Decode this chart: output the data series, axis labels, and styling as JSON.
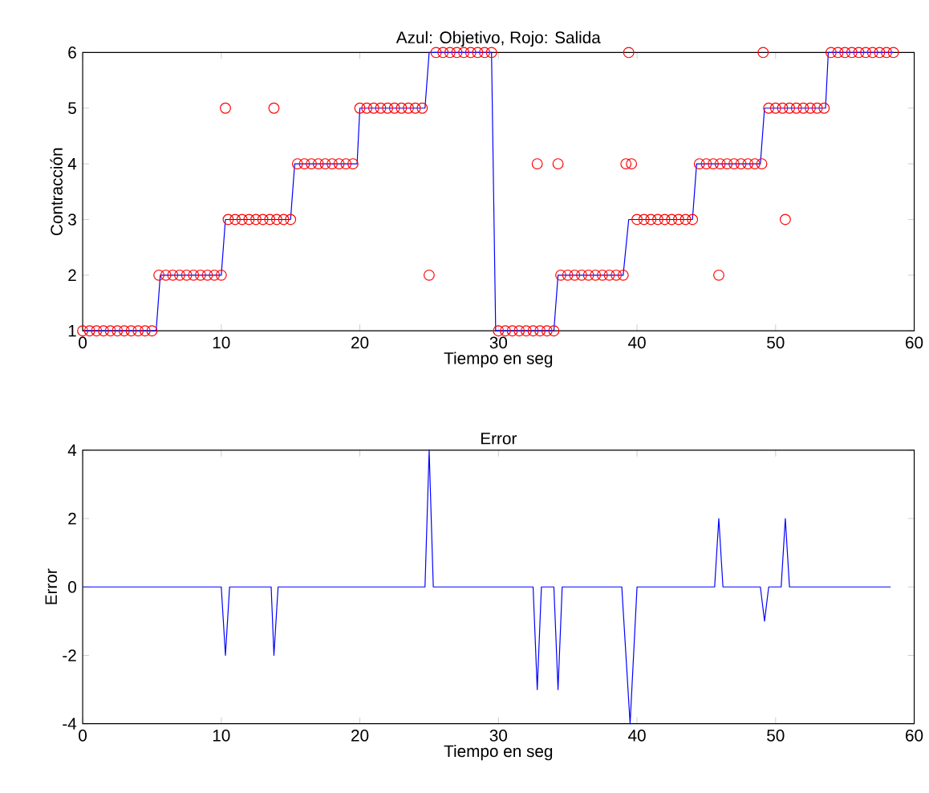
{
  "chart_data": [
    {
      "type": "line",
      "title": "Azul: Objetivo, Rojo: Salida",
      "xlabel": "Tiempo en seg",
      "ylabel": "Contracción",
      "xlim": [
        0,
        60
      ],
      "ylim": [
        1,
        6
      ],
      "xticks": [
        0,
        10,
        20,
        30,
        40,
        50,
        60
      ],
      "yticks": [
        1,
        2,
        3,
        4,
        5,
        6
      ],
      "series": [
        {
          "color": "#0000ff",
          "marker": "none",
          "line_style": "solid",
          "x": [
            0,
            5.3,
            5.6,
            10.0,
            10.3,
            15.0,
            15.3,
            19.8,
            20.0,
            24.7,
            25.0,
            29.5,
            29.8,
            34.0,
            34.3,
            39.0,
            39.4,
            44.0,
            44.3,
            48.9,
            49.2,
            53.6,
            53.8,
            58.5
          ],
          "values": [
            1,
            1,
            2,
            2,
            3,
            3,
            4,
            4,
            5,
            5,
            6,
            6,
            1,
            1,
            2,
            2,
            3,
            3,
            4,
            4,
            5,
            5,
            6,
            6
          ]
        },
        {
          "type": "scatter",
          "color": "#ff0000",
          "marker": "circle",
          "x": [
            0,
            0.5,
            1,
            1.5,
            2,
            2.5,
            3,
            3.5,
            4,
            4.5,
            5,
            5.5,
            6,
            6.5,
            7,
            7.5,
            8,
            8.5,
            9,
            9.5,
            10,
            10.3,
            10.5,
            11,
            11.5,
            12,
            12.5,
            13,
            13.5,
            13.8,
            14,
            14.5,
            15,
            15.5,
            16,
            16.5,
            17,
            17.5,
            18,
            18.5,
            19,
            19.5,
            20,
            20.5,
            21,
            21.5,
            22,
            22.5,
            23,
            23.5,
            24,
            24.5,
            25,
            25.5,
            26,
            26.5,
            27,
            27.5,
            28,
            28.5,
            29,
            29.5,
            30,
            30.5,
            31,
            31.5,
            32,
            32.5,
            32.8,
            33,
            33.5,
            34,
            34.3,
            34.5,
            35,
            35.5,
            36,
            36.5,
            37,
            37.5,
            38,
            38.5,
            39,
            39.2,
            39.4,
            39.6,
            40,
            40.5,
            41,
            41.5,
            42,
            42.5,
            43,
            43.5,
            44,
            44.5,
            45,
            45.5,
            45.9,
            46,
            46.5,
            47,
            47.5,
            48,
            48.5,
            49,
            49.1,
            49.5,
            50,
            50.5,
            50.7,
            51,
            51.5,
            52,
            52.5,
            53,
            53.5,
            54,
            54.5,
            55,
            55.5,
            56,
            56.5,
            57,
            57.5,
            58,
            58.5
          ],
          "values": [
            1,
            1,
            1,
            1,
            1,
            1,
            1,
            1,
            1,
            1,
            1,
            2,
            2,
            2,
            2,
            2,
            2,
            2,
            2,
            2,
            2,
            5,
            3,
            3,
            3,
            3,
            3,
            3,
            3,
            5,
            3,
            3,
            3,
            4,
            4,
            4,
            4,
            4,
            4,
            4,
            4,
            4,
            5,
            5,
            5,
            5,
            5,
            5,
            5,
            5,
            5,
            5,
            2,
            6,
            6,
            6,
            6,
            6,
            6,
            6,
            6,
            6,
            1,
            1,
            1,
            1,
            1,
            1,
            4,
            1,
            1,
            1,
            4,
            2,
            2,
            2,
            2,
            2,
            2,
            2,
            2,
            2,
            2,
            4,
            6,
            4,
            3,
            3,
            3,
            3,
            3,
            3,
            3,
            3,
            3,
            4,
            4,
            4,
            2,
            4,
            4,
            4,
            4,
            4,
            4,
            4,
            6,
            5,
            5,
            5,
            3,
            5,
            5,
            5,
            5,
            5,
            5,
            6,
            6,
            6,
            6,
            6,
            6,
            6,
            6,
            6,
            6
          ]
        }
      ]
    },
    {
      "type": "line",
      "title": "Error",
      "xlabel": "Tiempo en seg",
      "ylabel": "Error",
      "xlim": [
        0,
        60
      ],
      "ylim": [
        -4,
        4
      ],
      "xticks": [
        0,
        10,
        20,
        30,
        40,
        50,
        60
      ],
      "yticks": [
        -4,
        -2,
        0,
        2,
        4
      ],
      "series": [
        {
          "color": "#0000ff",
          "marker": "none",
          "line_style": "solid",
          "x": [
            0,
            10.0,
            10.3,
            10.6,
            13.6,
            13.8,
            14.1,
            24.7,
            25.0,
            25.3,
            32.5,
            32.8,
            33.1,
            34.0,
            34.3,
            34.6,
            38.9,
            39.5,
            40.0,
            45.6,
            45.9,
            46.2,
            48.9,
            49.2,
            49.5,
            50.4,
            50.7,
            51.0,
            58.3
          ],
          "values": [
            0,
            0,
            -2,
            0,
            0,
            -2,
            0,
            0,
            4,
            0,
            0,
            -3,
            0,
            0,
            -3,
            0,
            0,
            -4,
            0,
            0,
            2,
            0,
            0,
            -1,
            0,
            0,
            2,
            0,
            0
          ]
        }
      ]
    }
  ]
}
